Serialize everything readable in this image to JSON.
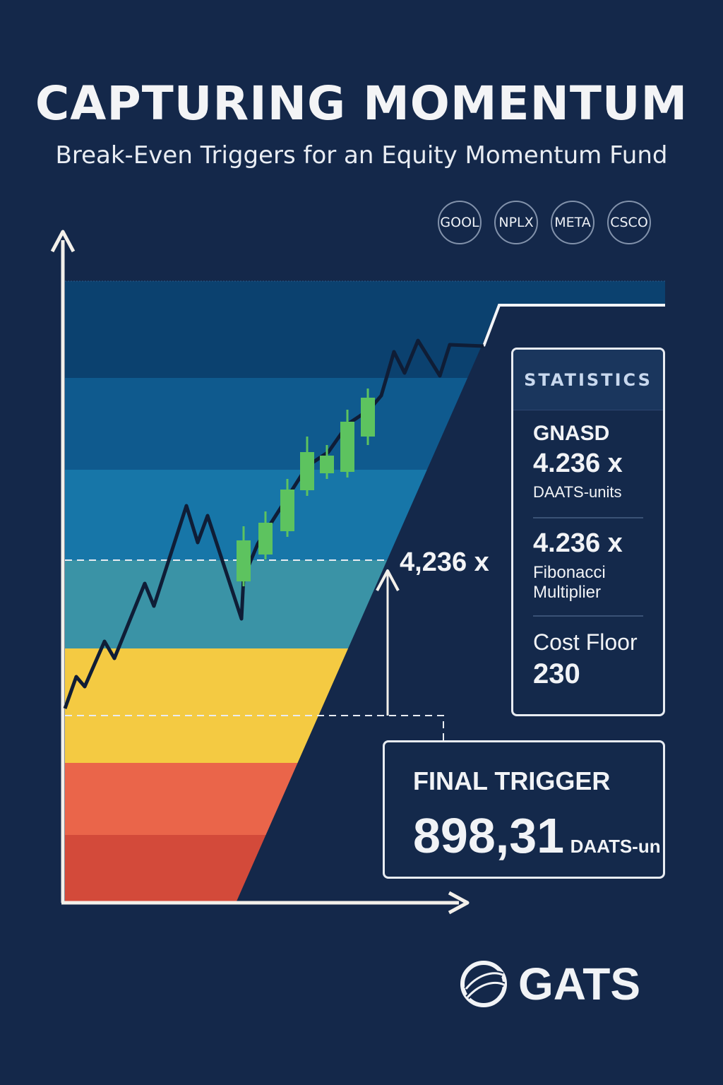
{
  "header": {
    "title": "CAPTURING MOMENTUM",
    "subtitle": "Break-Even Triggers for an Equity Momentum Fund"
  },
  "tickers": [
    "GOOL",
    "NPLX",
    "META",
    "CSCO"
  ],
  "chart_data": {
    "type": "line",
    "annotation_level": "4,236 x",
    "colors": {
      "bands": [
        "#d34a3a",
        "#ea654a",
        "#f4ca42",
        "#3a93a6",
        "#1776a8",
        "#0f5a8e",
        "#0b416f"
      ],
      "price_line": "#0f1d36",
      "candles": "#5dc35f",
      "target_line": "#f3f5f8"
    }
  },
  "statistics": {
    "heading": "STATISTICS",
    "items": [
      {
        "name": "GNASD",
        "value": "4.236 x",
        "unit": "DAATS-units"
      },
      {
        "value": "4.236 x",
        "unit_line1": "Fibonacci",
        "unit_line2": "Multiplier"
      },
      {
        "label": "Cost Floor",
        "value": "230"
      }
    ]
  },
  "final_trigger": {
    "label": "FINAL TRIGGER",
    "value": "898,31",
    "unit": "DAATS-un"
  },
  "brand": {
    "logo_text": "GATS"
  }
}
